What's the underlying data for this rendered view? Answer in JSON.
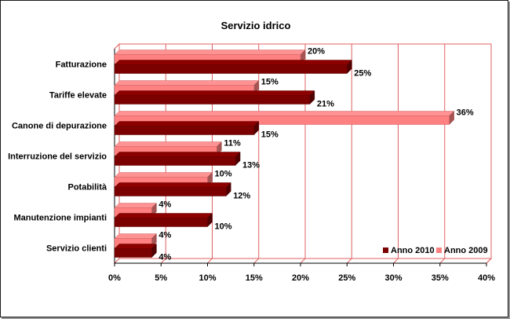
{
  "chart_data": {
    "type": "bar",
    "orientation": "horizontal",
    "style": "3d",
    "title": "Servizio idrico",
    "xlabel": "",
    "ylabel": "",
    "categories": [
      "Fatturazione",
      "Tariffe elevate",
      "Canone di depurazione",
      "Interruzione del servizio",
      "Potabilità",
      "Manutenzione impianti",
      "Servizio clienti"
    ],
    "series": [
      {
        "name": "Anno 2010",
        "values": [
          25,
          21,
          15,
          13,
          12,
          10,
          4
        ],
        "labels": [
          "25%",
          "21%",
          "15%",
          "13%",
          "12%",
          "10%",
          "4%"
        ],
        "color": "#7b0000"
      },
      {
        "name": "Anno 2009",
        "values": [
          20,
          15,
          36,
          11,
          10,
          4,
          4
        ],
        "labels": [
          "20%",
          "15%",
          "36%",
          "11%",
          "10%",
          "4%",
          "4%"
        ],
        "color": "#ff8080"
      }
    ],
    "xlim": [
      0,
      40
    ],
    "ticks": [
      0,
      5,
      10,
      15,
      20,
      25,
      30,
      35,
      40
    ],
    "tick_labels": [
      "0%",
      "5%",
      "10%",
      "15%",
      "20%",
      "25%",
      "30%",
      "35%",
      "40%"
    ],
    "grid": true,
    "grid_color": "#e06060",
    "legend": "bottom-right"
  }
}
